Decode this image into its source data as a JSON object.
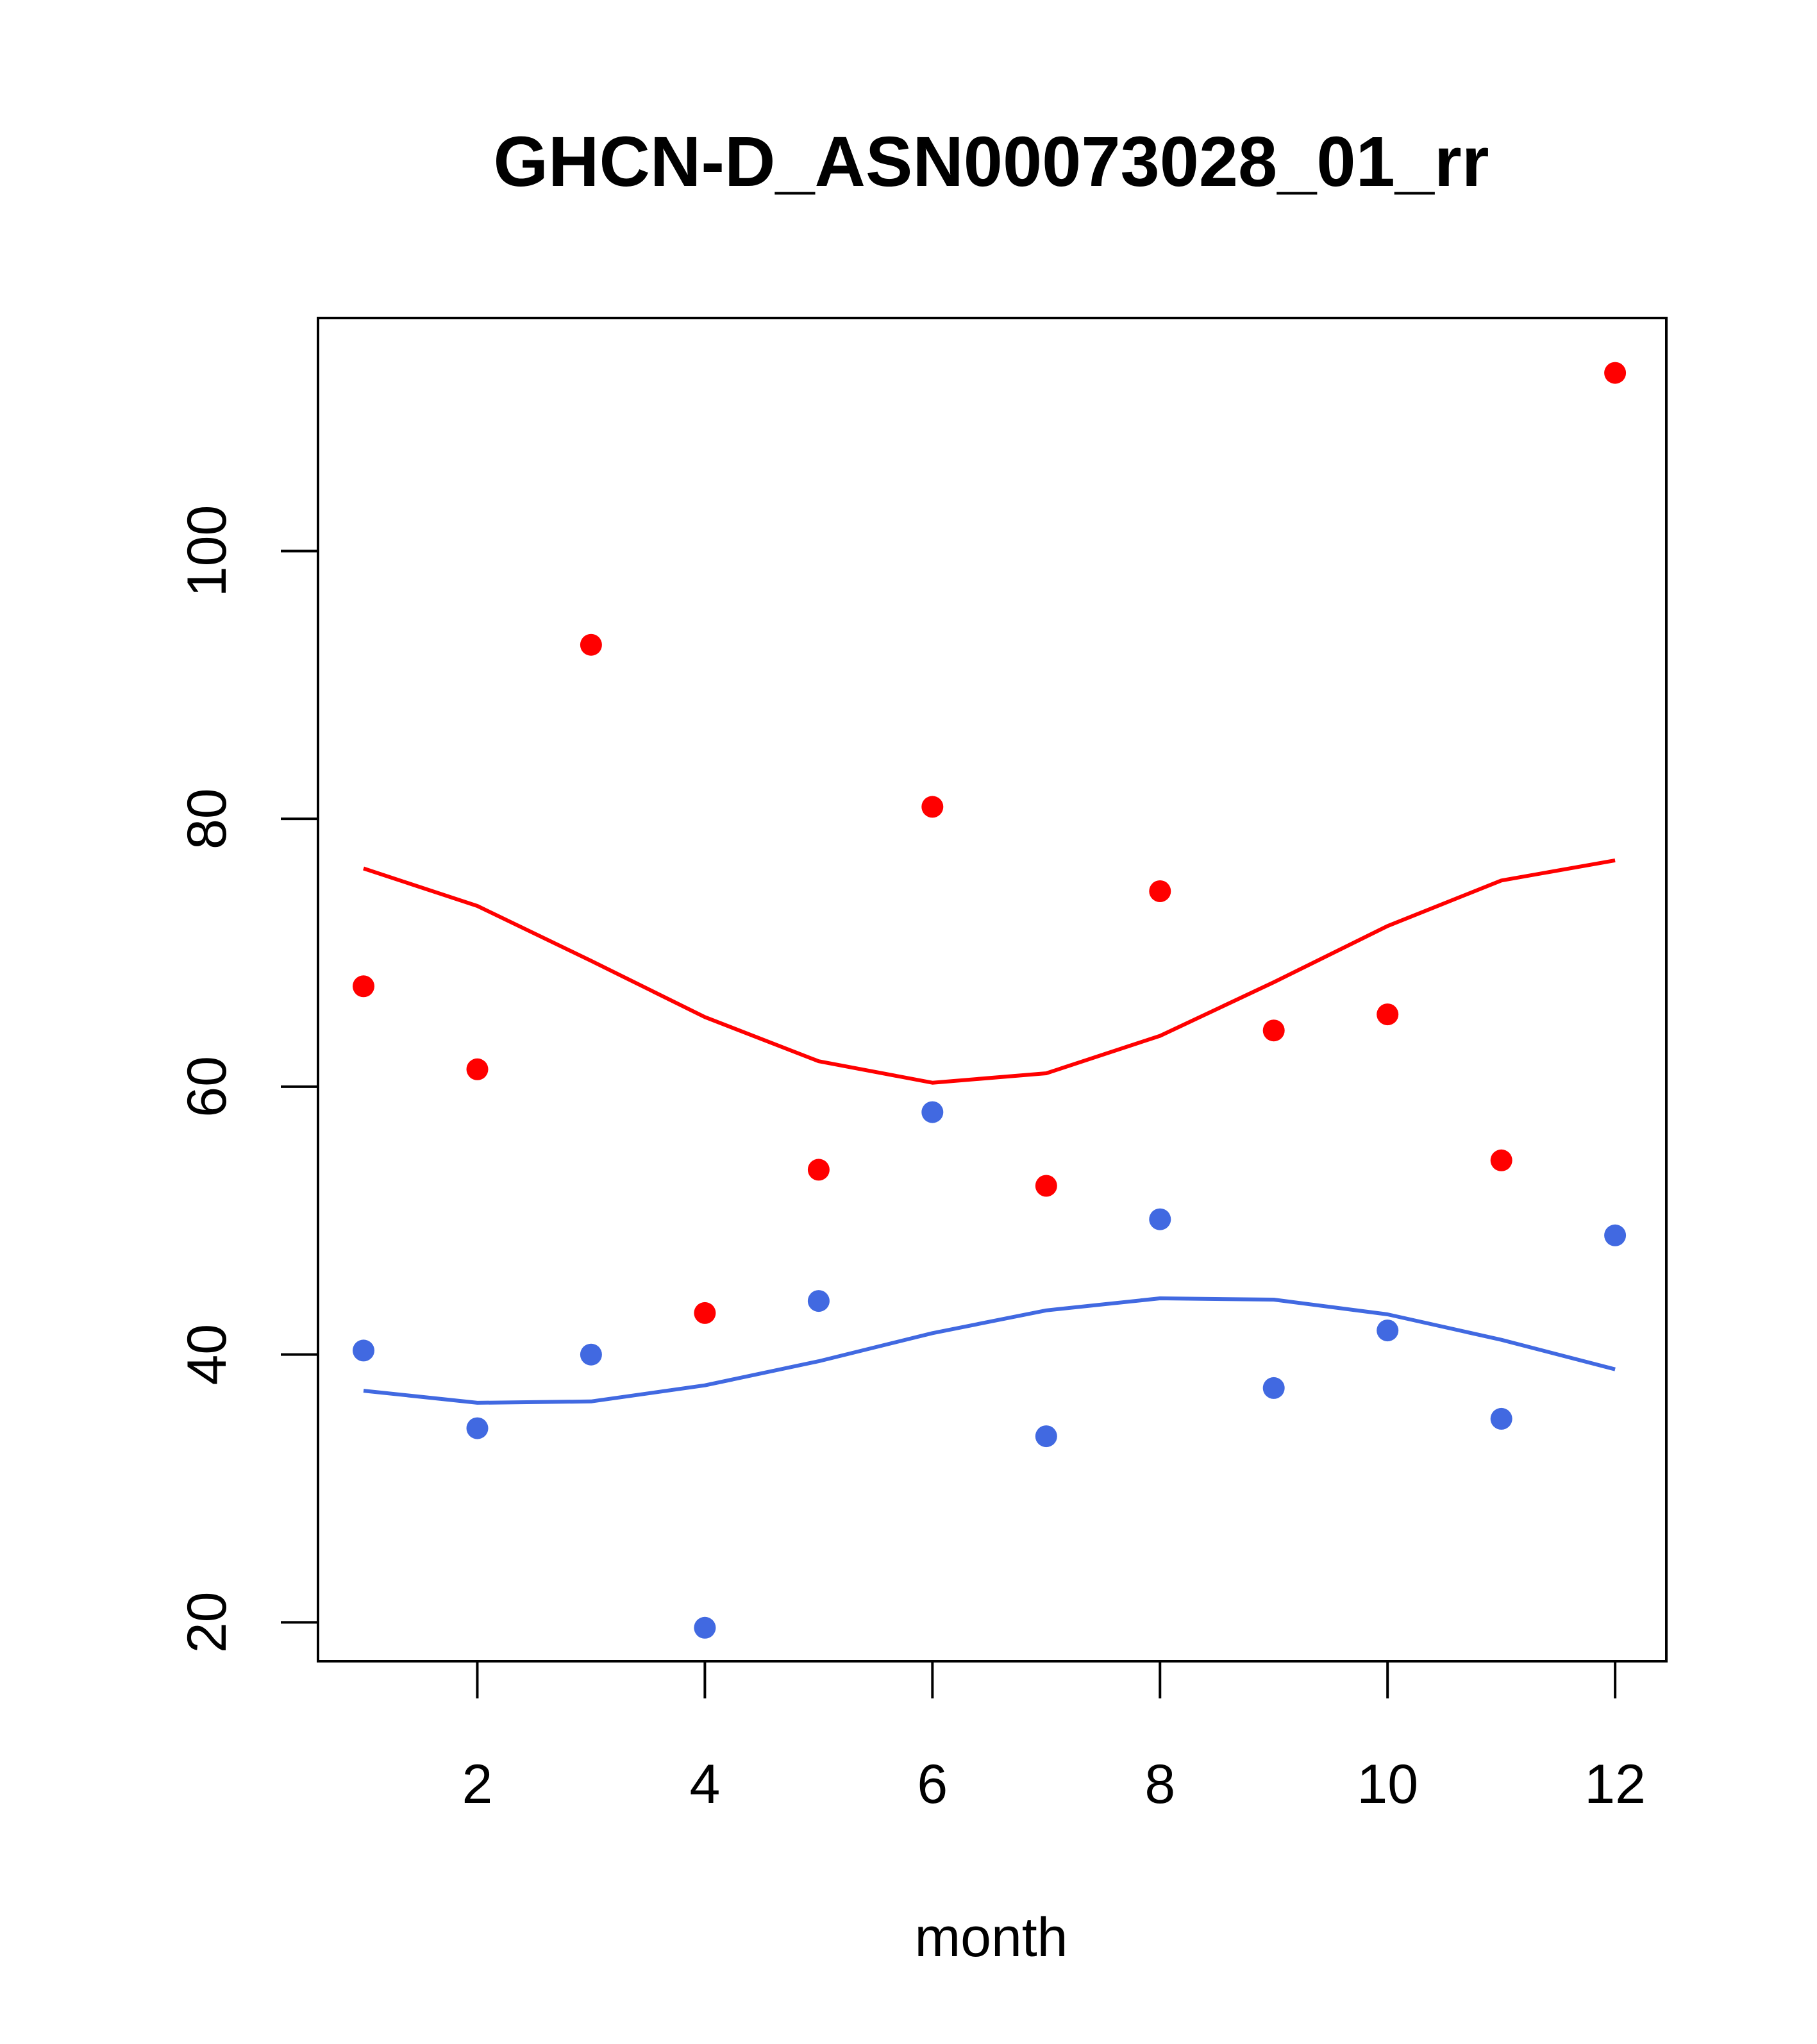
{
  "chart_data": {
    "type": "scatter",
    "title": "GHCN-D_ASN00073028_01_rr",
    "xlabel": "month",
    "ylabel": "",
    "xlim": [
      0.6,
      12.45
    ],
    "ylim": [
      17.1,
      117.4
    ],
    "x_ticks": [
      2,
      4,
      6,
      8,
      10,
      12
    ],
    "y_ticks": [
      20,
      40,
      60,
      80,
      100
    ],
    "grid": false,
    "legend": "none",
    "colors": {
      "red": "#ff0000",
      "blue": "#4169e1",
      "axis": "#000000"
    },
    "series": [
      {
        "color": "#ff0000",
        "kind": "points",
        "x": [
          1,
          2,
          3,
          4,
          5,
          6,
          7,
          8,
          9,
          10,
          11,
          12
        ],
        "y": [
          67.5,
          61.3,
          93.0,
          43.1,
          53.8,
          80.9,
          52.6,
          74.6,
          64.2,
          65.4,
          54.5,
          113.3
        ]
      },
      {
        "color": "#ff0000",
        "kind": "line",
        "x": [
          1,
          2,
          3,
          4,
          5,
          6,
          7,
          8,
          9,
          10,
          11,
          12
        ],
        "y": [
          76.3,
          73.5,
          69.4,
          65.2,
          61.9,
          60.3,
          61.0,
          63.8,
          67.8,
          72.0,
          75.4,
          76.9
        ]
      },
      {
        "color": "#4169e1",
        "kind": "points",
        "x": [
          1,
          2,
          3,
          4,
          5,
          6,
          7,
          8,
          9,
          10,
          11,
          12
        ],
        "y": [
          40.3,
          34.5,
          40.0,
          19.6,
          44.0,
          58.1,
          33.9,
          50.1,
          37.5,
          41.8,
          35.2,
          48.9
        ]
      },
      {
        "color": "#4169e1",
        "kind": "line",
        "x": [
          1,
          2,
          3,
          4,
          5,
          6,
          7,
          8,
          9,
          10,
          11,
          12
        ],
        "y": [
          37.3,
          36.4,
          36.5,
          37.7,
          39.5,
          41.6,
          43.3,
          44.2,
          44.1,
          43.0,
          41.1,
          38.9
        ]
      }
    ]
  }
}
